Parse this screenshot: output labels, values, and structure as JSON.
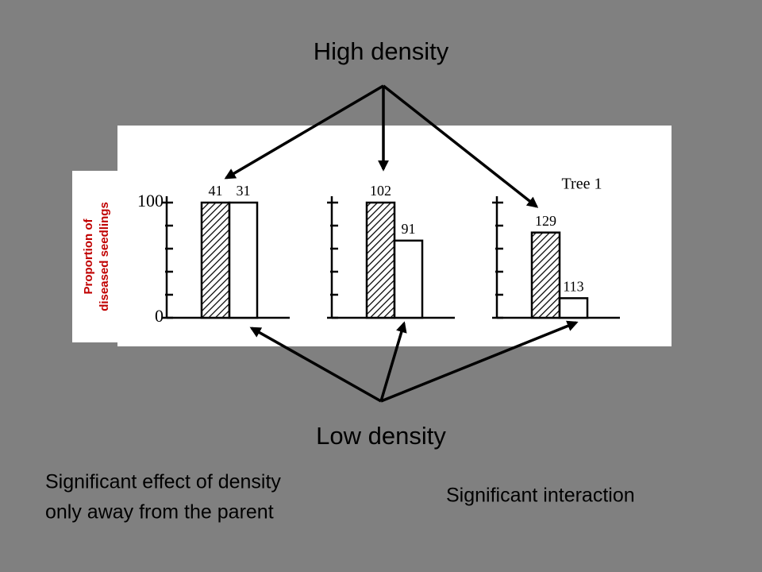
{
  "chart_data": {
    "type": "bar",
    "title": "Tree 1",
    "y_label": [
      "Proportion of",
      "diseased seedlings"
    ],
    "categories": [
      null,
      null,
      null
    ],
    "series": [
      {
        "name": "High density",
        "color": "#ffffff",
        "hatch": true,
        "values": [
          100,
          100,
          74
        ],
        "sample_sizes": [
          "41",
          "102",
          "129"
        ]
      },
      {
        "name": "Low density",
        "color": "#ffffff",
        "hatch": false,
        "values": [
          100,
          67,
          17
        ],
        "sample_sizes": [
          "31",
          "91",
          "113"
        ]
      }
    ],
    "ylim": [
      0,
      100
    ],
    "yticks": [
      0,
      100
    ],
    "minor_yticks": [
      20,
      40,
      60,
      80
    ],
    "annotations": [
      {
        "lines": [
          "Significant effect of density",
          "only away from the parent"
        ]
      },
      {
        "lines": [
          "Significant interaction"
        ]
      }
    ]
  }
}
